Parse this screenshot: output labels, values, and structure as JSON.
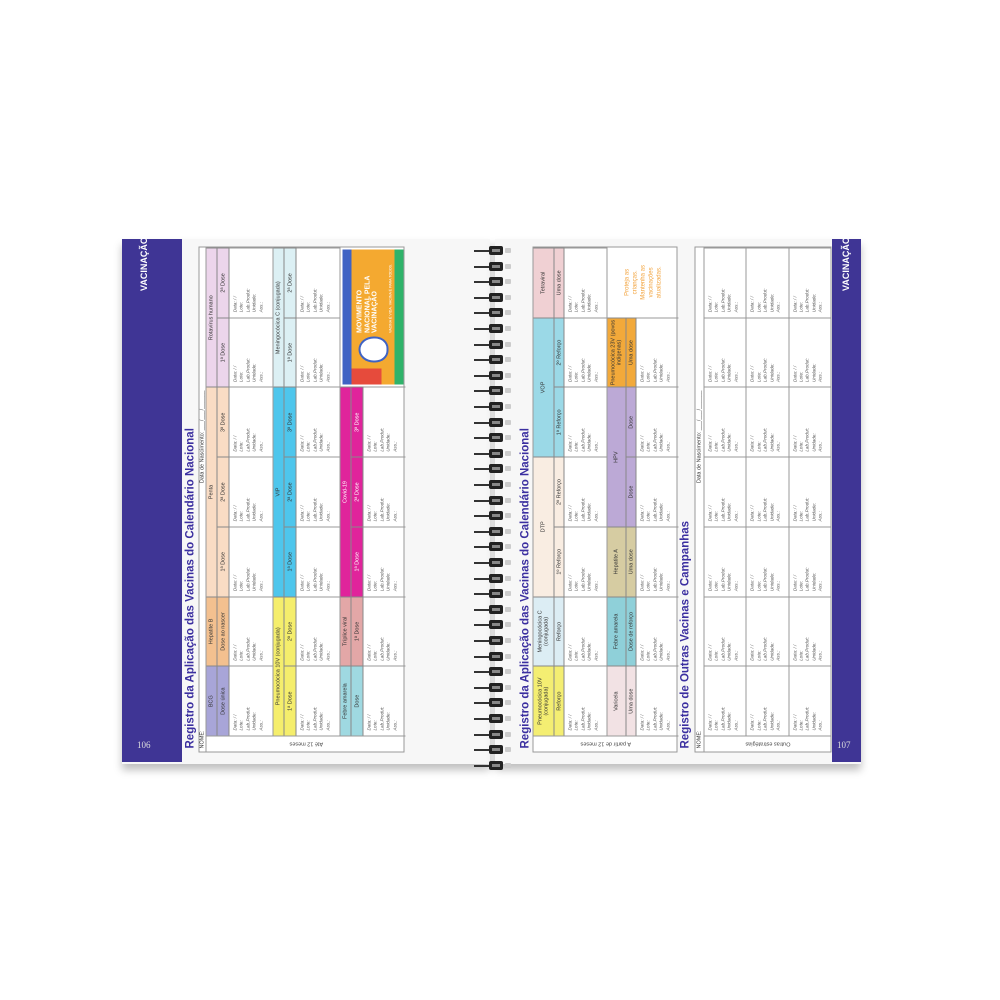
{
  "record_fields": [
    "Data:    /    /",
    "Lote:",
    "Lab.Produt:",
    "Unidade:",
    "Ass.:"
  ],
  "left_page": {
    "section_tab": "VACINAÇÃO",
    "page_number": "106",
    "title": "Registro da Aplicação das Vacinas do Calendário Nacional",
    "name_label": "NOME:",
    "birth_label": "Data de Nascimento: ___/___/______",
    "age_group": "Até 12 meses",
    "bands": [
      {
        "groups": [
          {
            "name": "BCG",
            "color": "#a8a5d8",
            "doses": [
              "Dose única"
            ]
          },
          {
            "name": "Hepatite B",
            "color": "#f3c08f",
            "doses": [
              "Dose ao nascer"
            ]
          },
          {
            "name": "Penta",
            "color": "#f9dcc4",
            "doses": [
              "1ª Dose",
              "2ª Dose",
              "3ª Dose"
            ]
          },
          {
            "name": "Rotavírus humano",
            "color": "#ecd5eb",
            "doses": [
              "1ª Dose",
              "2ª Dose"
            ]
          }
        ]
      },
      {
        "groups": [
          {
            "name": "Pneumocócica 10V (conjugada)",
            "color": "#f5ee6c",
            "doses": [
              "1ª Dose",
              "2ª Dose"
            ]
          },
          {
            "name": "VIP",
            "color": "#4ec6ec",
            "doses": [
              "1ª Dose",
              "2ª Dose",
              "3ª Dose"
            ]
          },
          {
            "name": "Meningocócica C (conjugada)",
            "color": "#dcf0f4",
            "doses": [
              "1ª Dose",
              "2ª Dose"
            ]
          }
        ]
      },
      {
        "groups": [
          {
            "name": "Febre amarela",
            "color": "#9fd9e1",
            "doses": [
              "Dose"
            ]
          },
          {
            "name": "Tríplice viral",
            "color": "#e3a7a7",
            "doses": [
              "1ª Dose"
            ]
          },
          {
            "name": "Covid-19",
            "color": "#e0249b",
            "doses": [
              "1ª Dose",
              "2ª Dose",
              "3ª Dose"
            ]
          },
          {
            "poster": true,
            "span": 2
          }
        ]
      }
    ],
    "poster": {
      "logo_text": "MOVIMENTO NACIONAL PELA VACINAÇÃO",
      "tagline": "VACINA É VIDA. VACINA É PARA TODOS.",
      "colors": [
        "#f4a930",
        "#3f63c4",
        "#2fb36a",
        "#e64b3c"
      ]
    }
  },
  "right_page": {
    "section_tab": "VACINAÇÃO",
    "page_number": "107",
    "title": "Registro da Aplicação das Vacinas do Calendário Nacional",
    "age_group": "A partir de 12 meses",
    "bands": [
      {
        "groups": [
          {
            "name": "Pneumocócica 10V (conjugada)",
            "color": "#f4ee72",
            "doses": [
              "Reforço"
            ]
          },
          {
            "name": "Meningocócica C (conjugada)",
            "color": "#dcedf4",
            "doses": [
              "Reforço"
            ]
          },
          {
            "name": "DTP",
            "color": "#f9ede2",
            "doses": [
              "1º Reforço",
              "2º Reforço"
            ]
          },
          {
            "name": "VOP",
            "color": "#9bd9e7",
            "doses": [
              "1º Reforço",
              "2º Reforço"
            ]
          },
          {
            "name": "Tetraviral",
            "color": "#f0d0d3",
            "doses": [
              "Uma dose"
            ]
          }
        ]
      },
      {
        "groups": [
          {
            "name": "Varicela",
            "color": "#f2e2e4",
            "doses": [
              "Uma dose"
            ]
          },
          {
            "name": "Febre amarela",
            "color": "#8fd0d9",
            "doses": [
              "Dose de reforço"
            ]
          },
          {
            "name": "Hepatite A",
            "color": "#d6cca2",
            "doses": [
              "Uma dose"
            ]
          },
          {
            "name": "HPV",
            "color": "#bca9d6",
            "doses": [
              "Dose",
              "Dose"
            ]
          },
          {
            "name": "Pneumocócica 23V (povos indígenas)",
            "color": "#f2a93a",
            "doses": [
              "Uma dose"
            ]
          },
          {
            "note": true,
            "text": "Proteja as crianças. Mantenha as vacinações atualizadas."
          }
        ]
      }
    ],
    "other": {
      "title": "Registro de Outras Vacinas e Campanhas",
      "name_label": "NOME:",
      "birth_label": "Data de Nascimento: ___/___/______",
      "row_label": "Outras estratégias",
      "rows": 3,
      "columns": 7
    }
  },
  "colors": {
    "accent": "#3f3595",
    "title": "#3b2fa0"
  }
}
